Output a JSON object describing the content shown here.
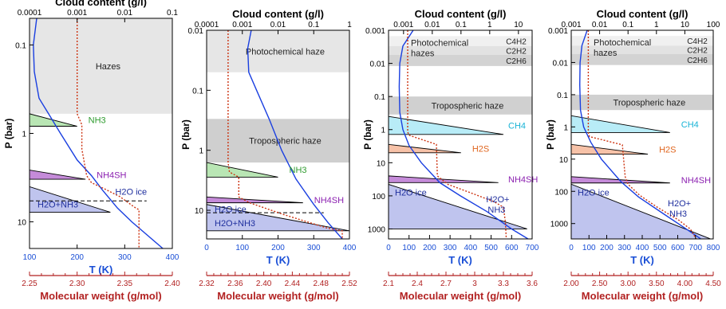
{
  "chart_data": [
    {
      "type": "line",
      "top_axis": {
        "label": "Cloud content (g/l)",
        "scale": "log",
        "range": [
          0.0001,
          0.1
        ],
        "ticks": [
          "0.0001",
          "0.001",
          "0.01",
          "0.1"
        ]
      },
      "left_axis": {
        "label": "P (bar)",
        "scale": "log",
        "range": [
          0.05,
          20
        ],
        "inverted": true,
        "ticks": [
          "0.1",
          "1",
          "10"
        ]
      },
      "bottom_axis": {
        "label": "T (K)",
        "range": [
          100,
          400
        ],
        "ticks": [
          "100",
          "200",
          "300",
          "400"
        ],
        "color": "#1a4fd6"
      },
      "mw_axis": {
        "label": "Molecular weight (g/mol)",
        "range": [
          2.25,
          2.4
        ],
        "ticks": [
          "2.25",
          "2.30",
          "2.35",
          "2.40"
        ],
        "color": "#b22222"
      },
      "bands": [
        {
          "label": "Hazes",
          "p_top": 0.05,
          "p_bottom": 0.6,
          "color": "#e6e6e6"
        }
      ],
      "clouds": [
        {
          "label": "NH3",
          "color": "#b9e6b4",
          "p_top": 0.6,
          "p_bottom": 0.83,
          "tip_x": 0.001
        },
        {
          "label": "NH4SH",
          "color": "#c58bd9",
          "p_top": 2.6,
          "p_bottom": 3.3,
          "tip_x": 0.0015
        },
        {
          "label": "H2O ice",
          "color": "#bfc4ee",
          "p_top": 4.0,
          "p_bottom": 7.8,
          "tip_x": 0.005
        },
        {
          "label": "H2O+NH3",
          "color": "#bfc4ee",
          "p_top": null,
          "p_bottom": null,
          "tip_x": null
        }
      ],
      "dashed_level_p": 5.8,
      "temperature_profile": {
        "name": "T (K)",
        "color": "#1a3fe0",
        "points": [
          [
            115,
            0.05
          ],
          [
            108,
            0.1
          ],
          [
            110,
            0.2
          ],
          [
            120,
            0.4
          ],
          [
            140,
            0.6
          ],
          [
            165,
            1.0
          ],
          [
            200,
            2.0
          ],
          [
            230,
            3.0
          ],
          [
            255,
            4.5
          ],
          [
            285,
            7.0
          ],
          [
            315,
            10.0
          ],
          [
            380,
            20.0
          ]
        ]
      },
      "mw_profile": {
        "name": "Molecular weight",
        "color": "#cc3311",
        "points": [
          [
            2.3,
            0.05
          ],
          [
            2.3,
            0.6
          ],
          [
            2.305,
            0.8
          ],
          [
            2.305,
            1.5
          ],
          [
            2.31,
            3.0
          ],
          [
            2.315,
            3.6
          ],
          [
            2.33,
            4.3
          ],
          [
            2.345,
            5.2
          ],
          [
            2.36,
            6.8
          ],
          [
            2.365,
            7.3
          ],
          [
            2.365,
            20.0
          ]
        ]
      }
    },
    {
      "type": "line",
      "top_axis": {
        "label": "Cloud content (g/l)",
        "scale": "log",
        "range": [
          0.0001,
          1
        ],
        "ticks": [
          "0.0001",
          "0.001",
          "0.01",
          "0.1",
          "1"
        ]
      },
      "left_axis": {
        "label": "P (bar)",
        "scale": "log",
        "range": [
          0.01,
          30
        ],
        "inverted": true,
        "ticks": [
          "0.01",
          "0.1",
          "1",
          "10"
        ]
      },
      "bottom_axis": {
        "label": "T (K)",
        "range": [
          0,
          400
        ],
        "ticks": [
          "0",
          "100",
          "200",
          "300",
          "400"
        ],
        "color": "#1a4fd6"
      },
      "mw_axis": {
        "label": "Molecular weight (g/mol)",
        "range": [
          2.32,
          2.52
        ],
        "ticks": [
          "2.32",
          "2.36",
          "2.40",
          "2.44",
          "2.48",
          "2.52"
        ],
        "color": "#b22222"
      },
      "bands": [
        {
          "label": "Photochemical haze",
          "p_top": 0.01,
          "p_bottom": 0.05,
          "color": "#e6e6e6"
        },
        {
          "label": "Tropospheric haze",
          "p_top": 0.3,
          "p_bottom": 1.6,
          "color": "#cfcfcf"
        }
      ],
      "clouds": [
        {
          "label": "NH3",
          "color": "#b9e6b4",
          "p_top": 1.6,
          "p_bottom": 2.8,
          "tip_x": 0.01
        },
        {
          "label": "NH4SH",
          "color": "#c58bd9",
          "p_top": 6.0,
          "p_bottom": 7.5,
          "tip_x": 0.05
        },
        {
          "label": "H2O ice",
          "color": "#bfc4ee",
          "p_top": 8.0,
          "p_bottom": 22.0,
          "tip_x": 1.0
        },
        {
          "label": "H2O+NH3",
          "color": "#bfc4ee",
          "p_top": null,
          "p_bottom": null,
          "tip_x": null
        }
      ],
      "dashed_level_p": 11.0,
      "temperature_profile": {
        "name": "T (K)",
        "color": "#1a3fe0",
        "points": [
          [
            125,
            0.01
          ],
          [
            115,
            0.02
          ],
          [
            118,
            0.05
          ],
          [
            140,
            0.1
          ],
          [
            175,
            0.3
          ],
          [
            210,
            1.0
          ],
          [
            250,
            3.0
          ],
          [
            300,
            8.0
          ],
          [
            340,
            16.0
          ],
          [
            380,
            30.0
          ]
        ]
      },
      "mw_profile": {
        "name": "Molecular weight",
        "color": "#cc3311",
        "points": [
          [
            2.35,
            0.01
          ],
          [
            2.35,
            1.6
          ],
          [
            2.352,
            2.3
          ],
          [
            2.365,
            2.8
          ],
          [
            2.365,
            6.0
          ],
          [
            2.38,
            7.5
          ],
          [
            2.43,
            12.0
          ],
          [
            2.49,
            20.0
          ],
          [
            2.51,
            22.0
          ],
          [
            2.51,
            30.0
          ]
        ]
      }
    },
    {
      "type": "line",
      "top_axis": {
        "label": "Cloud content (g/l)",
        "scale": "log",
        "range": [
          0.0003,
          30
        ],
        "ticks": [
          "0.001",
          "0.01",
          "0.1",
          "1",
          "10"
        ]
      },
      "left_axis": {
        "label": "P (bar)",
        "scale": "log",
        "range": [
          0.001,
          2000
        ],
        "inverted": true,
        "ticks": [
          "0.001",
          "0.01",
          "0.1",
          "1",
          "10",
          "100",
          "1000"
        ]
      },
      "bottom_axis": {
        "label": "T (K)",
        "range": [
          0,
          700
        ],
        "ticks": [
          "0",
          "100",
          "200",
          "300",
          "400",
          "500",
          "600",
          "700"
        ],
        "color": "#1a4fd6"
      },
      "mw_axis": {
        "label": "Molecular weight (g/mol)",
        "range": [
          2.1,
          3.6
        ],
        "ticks": [
          "2.1",
          "2.4",
          "2.7",
          "3",
          "3.3",
          "3.6"
        ],
        "color": "#b22222"
      },
      "bands": [
        {
          "label": "C4H2",
          "p_top": 0.0015,
          "p_bottom": 0.003,
          "color": "#f0f0f0"
        },
        {
          "label": "C2H2",
          "p_top": 0.003,
          "p_bottom": 0.0055,
          "color": "#e2e2e2"
        },
        {
          "label": "C2H6",
          "p_top": 0.0055,
          "p_bottom": 0.012,
          "color": "#d3d3d3"
        },
        {
          "label": "Tropospheric haze",
          "p_top": 0.1,
          "p_bottom": 0.35,
          "color": "#d0d0d0"
        }
      ],
      "band_labels": [
        "Photochemical",
        "hazes"
      ],
      "clouds": [
        {
          "label": "CH4",
          "color": "#b8ecf7",
          "p_top": 0.4,
          "p_bottom": 1.4,
          "tip_x": 3
        },
        {
          "label": "H2S",
          "color": "#f7c2a8",
          "p_top": 2.8,
          "p_bottom": 5.0,
          "tip_x": 0.1
        },
        {
          "label": "NH4SH",
          "color": "#c58bd9",
          "p_top": 25.0,
          "p_bottom": 40.0,
          "tip_x": 2
        },
        {
          "label": "H2O ice",
          "color": "#bfc4ee",
          "p_top": 45.0,
          "p_bottom": 1000.0,
          "tip_x": 20
        },
        {
          "label": "H2O+ NH3",
          "color": "#bfc4ee",
          "p_top": null,
          "p_bottom": null,
          "tip_x": null
        }
      ],
      "temperature_profile": {
        "name": "T (K)",
        "color": "#1a3fe0",
        "points": [
          [
            120,
            0.001
          ],
          [
            70,
            0.003
          ],
          [
            55,
            0.01
          ],
          [
            52,
            0.05
          ],
          [
            55,
            0.3
          ],
          [
            70,
            1.0
          ],
          [
            100,
            3.0
          ],
          [
            160,
            10.0
          ],
          [
            250,
            40.0
          ],
          [
            350,
            100.0
          ],
          [
            480,
            300.0
          ],
          [
            600,
            1000.0
          ],
          [
            680,
            2000.0
          ]
        ]
      },
      "mw_profile": {
        "name": "Molecular weight",
        "color": "#cc3311",
        "points": [
          [
            2.3,
            0.001
          ],
          [
            2.3,
            0.4
          ],
          [
            2.3,
            1.2
          ],
          [
            2.32,
            1.5
          ],
          [
            2.6,
            2.8
          ],
          [
            2.61,
            25.0
          ],
          [
            2.72,
            45.0
          ],
          [
            3.0,
            90.0
          ],
          [
            3.2,
            150.0
          ],
          [
            3.3,
            220.0
          ],
          [
            3.32,
            600.0
          ],
          [
            3.33,
            2000.0
          ]
        ]
      }
    },
    {
      "type": "line",
      "top_axis": {
        "label": "Cloud content (g/l)",
        "scale": "log",
        "range": [
          0.001,
          100
        ],
        "ticks": [
          "0.001",
          "0.01",
          "0.1",
          "1",
          "10",
          "100"
        ]
      },
      "left_axis": {
        "label": "P (bar)",
        "scale": "log",
        "range": [
          0.001,
          3000
        ],
        "inverted": true,
        "ticks": [
          "0.001",
          "0.01",
          "0.1",
          "1",
          "10",
          "100",
          "1000"
        ]
      },
      "bottom_axis": {
        "label": "T (K)",
        "range": [
          0,
          800
        ],
        "ticks": [
          "0",
          "100",
          "200",
          "300",
          "400",
          "500",
          "600",
          "700",
          "800"
        ],
        "color": "#1a4fd6"
      },
      "mw_axis": {
        "label": "Molecular weight (g/mol)",
        "range": [
          2.0,
          4.5
        ],
        "ticks": [
          "2.00",
          "2.50",
          "3.00",
          "3.50",
          "4.00",
          "4.50"
        ],
        "color": "#b22222"
      },
      "bands": [
        {
          "label": "C4H2",
          "p_top": 0.0015,
          "p_bottom": 0.003,
          "color": "#f0f0f0"
        },
        {
          "label": "C2H2",
          "p_top": 0.003,
          "p_bottom": 0.0055,
          "color": "#e2e2e2"
        },
        {
          "label": "C2H6",
          "p_top": 0.0055,
          "p_bottom": 0.012,
          "color": "#d3d3d3"
        },
        {
          "label": "Tropospheric haze",
          "p_top": 0.1,
          "p_bottom": 0.3,
          "color": "#d0d0d0"
        }
      ],
      "band_labels": [
        "Photochemical",
        "hazes"
      ],
      "clouds": [
        {
          "label": "CH4",
          "color": "#b8ecf7",
          "p_top": 0.45,
          "p_bottom": 1.5,
          "tip_x": 3
        },
        {
          "label": "H2S",
          "color": "#f7c2a8",
          "p_top": 3.5,
          "p_bottom": 7.0,
          "tip_x": 0.5
        },
        {
          "label": "NH4SH",
          "color": "#c58bd9",
          "p_top": 35.0,
          "p_bottom": 55.0,
          "tip_x": 3
        },
        {
          "label": "H2O ice",
          "color": "#bfc4ee",
          "p_top": 60.0,
          "p_bottom": 3000.0,
          "tip_x": 80
        },
        {
          "label": "H2O+ NH3",
          "color": "#bfc4ee",
          "p_top": null,
          "p_bottom": null,
          "tip_x": null
        }
      ],
      "temperature_profile": {
        "name": "T (K)",
        "color": "#1a3fe0",
        "points": [
          [
            90,
            0.001
          ],
          [
            60,
            0.003
          ],
          [
            50,
            0.01
          ],
          [
            48,
            0.05
          ],
          [
            52,
            0.3
          ],
          [
            70,
            1.0
          ],
          [
            110,
            3.0
          ],
          [
            170,
            10.0
          ],
          [
            280,
            50.0
          ],
          [
            380,
            150.0
          ],
          [
            520,
            500.0
          ],
          [
            650,
            1500.0
          ],
          [
            730,
            3000.0
          ]
        ]
      },
      "mw_profile": {
        "name": "Molecular weight",
        "color": "#cc3311",
        "points": [
          [
            2.3,
            0.001
          ],
          [
            2.3,
            0.45
          ],
          [
            2.3,
            1.5
          ],
          [
            2.32,
            2.0
          ],
          [
            2.9,
            3.6
          ],
          [
            2.95,
            35.0
          ],
          [
            3.0,
            60.0
          ],
          [
            3.2,
            130.0
          ],
          [
            3.5,
            300.0
          ],
          [
            3.9,
            800.0
          ],
          [
            4.1,
            1500.0
          ],
          [
            4.2,
            3000.0
          ]
        ]
      }
    }
  ]
}
